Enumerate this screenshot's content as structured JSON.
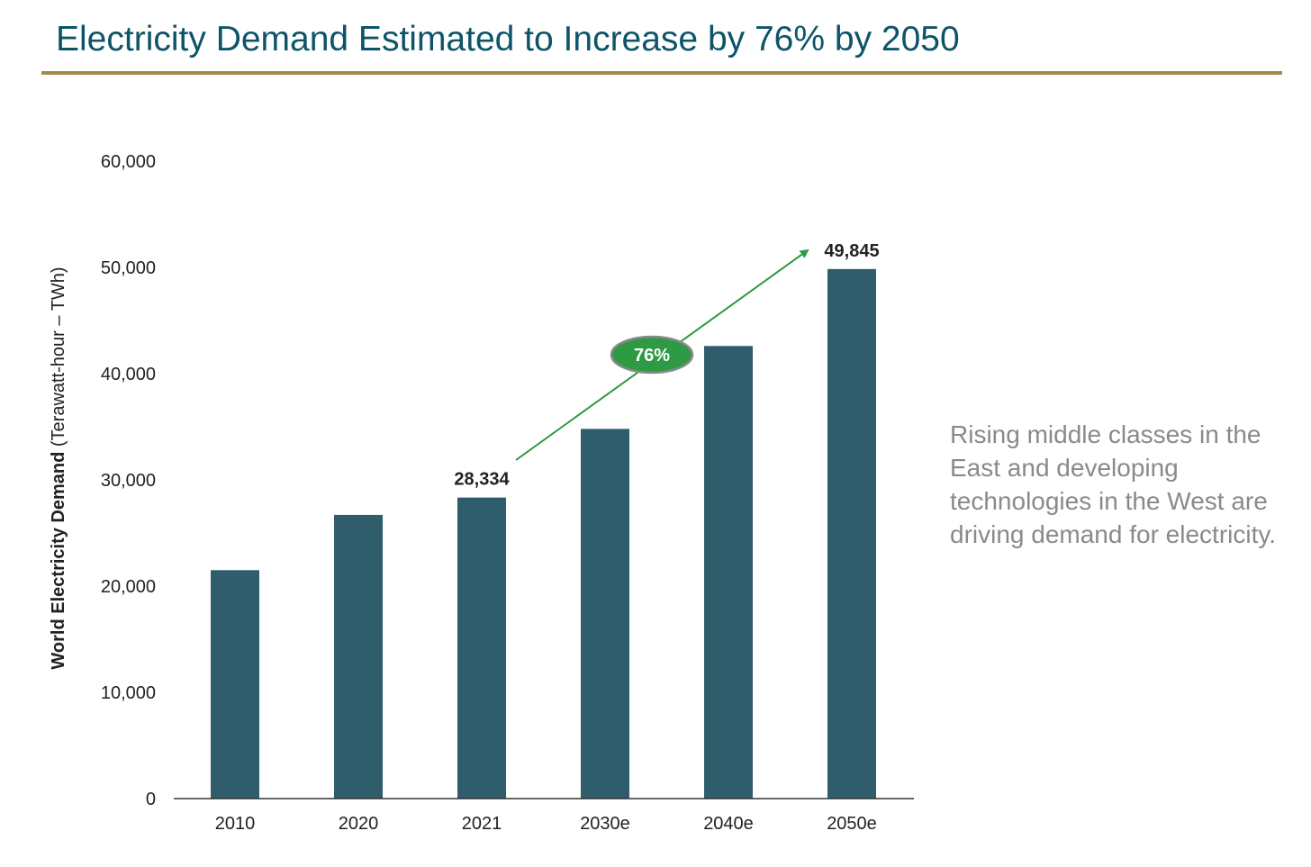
{
  "title": "Electricity Demand Estimated to Increase by 76% by 2050",
  "side_note": "Rising middle classes in the East and developing technologies in the West are driving demand for electricity.",
  "colors": {
    "title": "#0d5468",
    "rule": "#a08a4c",
    "bar": "#2f5d6b",
    "arrow": "#2e9a44",
    "bubble_fill": "#2e9a44",
    "bubble_border": "#8a8a8a",
    "note": "#8a8a8a"
  },
  "chart_data": {
    "type": "bar",
    "categories": [
      "2010",
      "2020",
      "2021",
      "2030e",
      "2040e",
      "2050e"
    ],
    "values": [
      21500,
      26700,
      28334,
      34800,
      42600,
      49845
    ],
    "ylabel_bold": "World Electricity Demand",
    "ylabel_rest": " (Terawatt-hour – TWh)",
    "ylim": [
      0,
      60000
    ],
    "yticks": [
      "0",
      "10,000",
      "20,000",
      "30,000",
      "40,000",
      "50,000",
      "60,000"
    ],
    "ytick_values": [
      0,
      10000,
      20000,
      30000,
      40000,
      50000,
      60000
    ],
    "data_labels": [
      {
        "category": "2021",
        "text": "28,334"
      },
      {
        "category": "2050e",
        "text": "49,845"
      }
    ],
    "annotation": {
      "text": "76%",
      "from": "2021",
      "to": "2050e"
    },
    "grid": false,
    "legend": "none"
  }
}
